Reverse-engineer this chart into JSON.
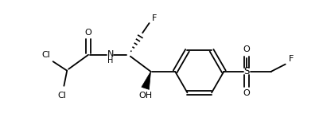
{
  "background": "#ffffff",
  "line_color": "#000000",
  "lw": 1.3,
  "fig_width": 4.02,
  "fig_height": 1.72,
  "dpi": 100,
  "xlim": [
    0,
    10.5
  ],
  "ylim": [
    0,
    4.5
  ]
}
